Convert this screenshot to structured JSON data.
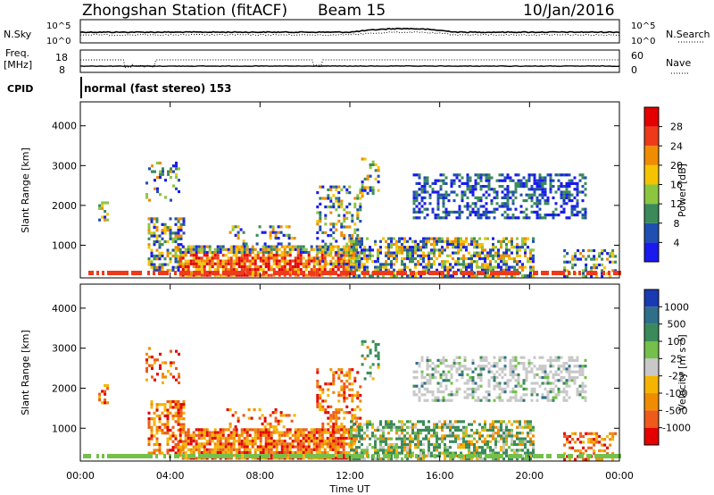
{
  "header": {
    "station": "Zhongshan Station (fitACF)",
    "beam": "Beam 15",
    "date": "10/Jan/2016"
  },
  "top_panels": {
    "nsky_label": "N.Sky",
    "nsky_tick_high": "10^5",
    "nsky_tick_low": "10^0",
    "nsearch_label": "N.Search",
    "nsearch_tick_high": "10^5",
    "nsearch_tick_low": "10^0",
    "freq_label": "Freq.",
    "freq_unit": "[MHz]",
    "freq_tick_high": "18",
    "freq_tick_low": "8",
    "nave_label": "Nave",
    "nave_tick_high": "60",
    "nave_tick_low": "0",
    "cpid_label": "CPID",
    "cpid_value": "normal (fast stereo) 153"
  },
  "chart_data": [
    {
      "type": "heatmap",
      "title": "",
      "ylabel": "Slant Range [km]",
      "xlabel": "",
      "yticks": [
        "1000",
        "2000",
        "3000",
        "4000"
      ],
      "ylim": [
        180,
        4600
      ],
      "colorbar_label": "Power [dB]",
      "colorbar_ticks": [
        "4",
        "8",
        "12",
        "16",
        "20",
        "24",
        "28"
      ],
      "colors": [
        "#1a1aee",
        "#1f4fb0",
        "#3a8a5a",
        "#8cc63f",
        "#f5c400",
        "#f08c00",
        "#ee3a1a",
        "#e40000"
      ]
    },
    {
      "type": "heatmap",
      "title": "",
      "ylabel": "Slant Range [km]",
      "xlabel": "Time UT",
      "xticks": [
        "00:00",
        "04:00",
        "08:00",
        "12:00",
        "16:00",
        "20:00",
        "00:00"
      ],
      "yticks": [
        "1000",
        "2000",
        "3000",
        "4000"
      ],
      "ylim": [
        180,
        4600
      ],
      "colorbar_label": "Velocity [m s⁻¹]",
      "colorbar_ticks": [
        "1000",
        "500",
        "100",
        "25",
        "-25",
        "-100",
        "-500",
        "-1000"
      ],
      "colors": [
        "#1a3ab4",
        "#2f6f8a",
        "#3a8a5a",
        "#74c04a",
        "#c8c8c8",
        "#f5b400",
        "#f08c00",
        "#ee5a1a",
        "#e40000"
      ]
    }
  ]
}
